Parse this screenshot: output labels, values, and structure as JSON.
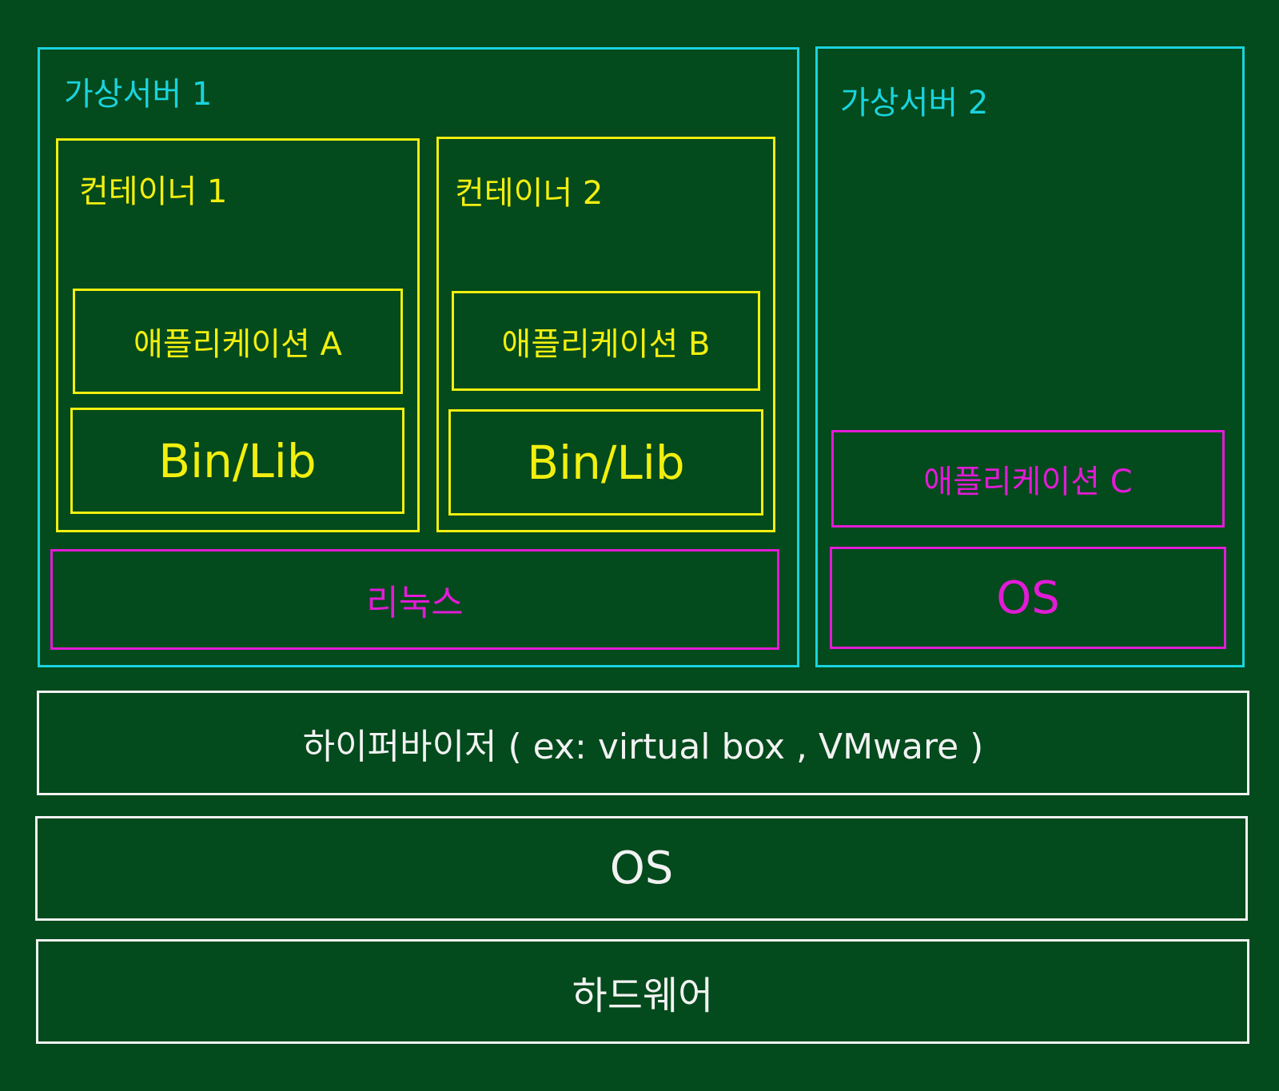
{
  "vm1": {
    "title": "가상서버 1",
    "container1": {
      "title": "컨테이너 1",
      "app": "애플리케이션 A",
      "binlib": "Bin/Lib"
    },
    "container2": {
      "title": "컨테이너 2",
      "app": "애플리케이션 B",
      "binlib": "Bin/Lib"
    },
    "os": "리눅스"
  },
  "vm2": {
    "title": "가상서버 2",
    "app": "애플리케이션 C",
    "os": "OS"
  },
  "hypervisor": "하이퍼바이저 ( ex: virtual box , VMware )",
  "host_os": "OS",
  "hardware": "하드웨어",
  "colors": {
    "background": "#034a1c",
    "virtual_server": "#1ad3de",
    "container": "#f2ef0f",
    "os_app_layer": "#e21bd6",
    "host_layer": "#f2f2f2"
  }
}
